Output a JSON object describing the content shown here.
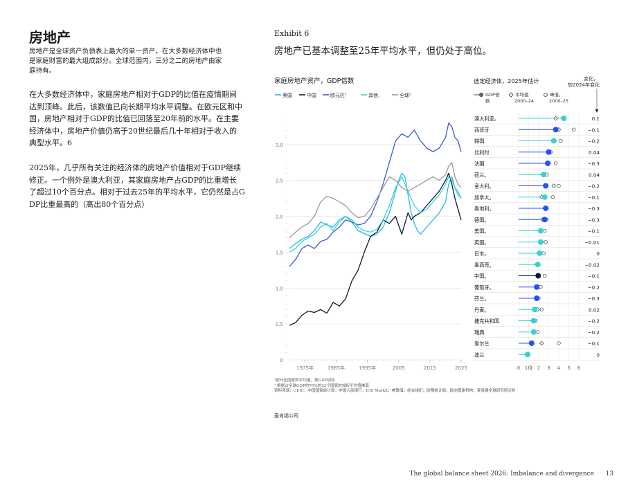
{
  "section": {
    "title": "房地产",
    "intro_lines": [
      "房地产是全球资产负债表上最大的单一资产，在大多数经济体中也",
      "是家庭财富的最大组成部分。全球范围内，三分之二的房地产由家",
      "庭持有。"
    ]
  },
  "body": {
    "para1_lines": [
      "在大多数经济体中，家庭房地产相对于GDP的比值在疫情期间",
      "达到顶峰。此后，该数值已向长期平均水平调整。在欧元区和中",
      "国，房地产相对于GDP的比值已回落至20年前的水平。在主要",
      "经济体中，房地产价值仍高于20世纪最后几十年相对于收入的",
      "典型水平。6"
    ],
    "para2_lines": [
      "2025年，几乎所有关注的经济体的房地产价值相对于GDP继续",
      "修正。一个例外是澳大利亚，其家庭房地产占GDP的比重增长",
      "了超过10个百分点。相对于过去25年的平均水平，它仍然是占G",
      "DP比重最高的（高出80个百分点）"
    ]
  },
  "exhibit": {
    "label": "Exhibit 6",
    "title": "房地产已基本调整至25年平均水平，但仍处于高位。"
  },
  "colors": {
    "us": "#2ab7e3",
    "china": "#0b1a33",
    "euro": "#3a57d6",
    "other": "#36d3d3",
    "global": "#9a9a9a",
    "dot_fill": "#2251ff",
    "dot_teal": "#36d3d3",
    "dot_dark": "#0b1a33"
  },
  "chart_data": [
    {
      "type": "line",
      "title": "家庭房地产资产，GDP倍数",
      "legend": [
        "美国",
        "中国",
        "欧元区¹",
        "其他.",
        "全球²"
      ],
      "x_ticks": [
        "1975年",
        "1985年",
        "1995年",
        "2005",
        "2015",
        "2025"
      ],
      "y_ticks": [
        "0",
        "0.5",
        "1.0",
        "1.5",
        "2.0",
        "2.5",
        "3.0"
      ],
      "ylim": [
        0,
        3.5
      ],
      "xlim": [
        1970,
        2025
      ],
      "series": [
        {
          "name": "美国",
          "color_key": "us",
          "x": [
            1970,
            1972,
            1974,
            1976,
            1978,
            1980,
            1982,
            1984,
            1986,
            1988,
            1990,
            1992,
            1994,
            1996,
            1998,
            2000,
            2002,
            2004,
            2005,
            2006,
            2007,
            2008,
            2009,
            2010,
            2011,
            2012,
            2014,
            2016,
            2018,
            2020,
            2021,
            2022,
            2023,
            2024,
            2025
          ],
          "y": [
            1.55,
            1.62,
            1.68,
            1.72,
            1.8,
            1.92,
            1.88,
            1.85,
            1.95,
            2.0,
            1.92,
            1.8,
            1.76,
            1.72,
            1.75,
            1.85,
            2.05,
            2.35,
            2.5,
            2.6,
            2.55,
            2.3,
            2.05,
            1.9,
            1.8,
            1.75,
            1.85,
            1.95,
            2.05,
            2.2,
            2.45,
            2.55,
            2.4,
            2.3,
            2.25
          ]
        },
        {
          "name": "中国",
          "color_key": "china",
          "x": [
            1970,
            1972,
            1974,
            1976,
            1978,
            1980,
            1982,
            1984,
            1986,
            1988,
            1990,
            1992,
            1994,
            1996,
            1998,
            2000,
            2002,
            2004,
            2006,
            2008,
            2009,
            2010,
            2012,
            2014,
            2016,
            2018,
            2020,
            2021,
            2022,
            2023,
            2024,
            2025
          ],
          "y": [
            0.48,
            0.52,
            0.62,
            0.68,
            0.66,
            0.7,
            0.65,
            0.8,
            0.75,
            0.85,
            1.1,
            1.25,
            1.5,
            1.72,
            1.78,
            1.95,
            1.9,
            2.0,
            1.75,
            2.05,
            1.95,
            2.0,
            2.05,
            2.15,
            2.25,
            2.35,
            2.5,
            2.6,
            2.45,
            2.25,
            2.1,
            1.95
          ]
        },
        {
          "name": "欧元区¹",
          "color_key": "euro",
          "x": [
            1970,
            1972,
            1974,
            1976,
            1978,
            1980,
            1982,
            1984,
            1986,
            1988,
            1990,
            1992,
            1994,
            1996,
            1998,
            2000,
            2002,
            2004,
            2006,
            2008,
            2010,
            2012,
            2014,
            2016,
            2018,
            2020,
            2021,
            2022,
            2023,
            2024,
            2025
          ],
          "y": [
            1.3,
            1.4,
            1.55,
            1.6,
            1.55,
            1.65,
            1.68,
            1.78,
            1.85,
            1.95,
            1.92,
            1.88,
            1.9,
            2.0,
            2.2,
            2.45,
            2.75,
            3.05,
            3.15,
            3.1,
            3.2,
            3.05,
            2.95,
            2.9,
            2.95,
            3.1,
            3.3,
            3.25,
            3.1,
            3.05,
            2.9
          ]
        },
        {
          "name": "其他.",
          "color_key": "other",
          "x": [
            1970,
            1972,
            1974,
            1976,
            1978,
            1980,
            1982,
            1984,
            1986,
            1988,
            1990,
            1992,
            1994,
            1996,
            1998,
            2000,
            2002,
            2004,
            2006,
            2008,
            2010,
            2012,
            2014,
            2016,
            2018,
            2020,
            2021,
            2022,
            2023,
            2024,
            2025
          ],
          "y": [
            1.5,
            1.55,
            1.65,
            1.7,
            1.75,
            1.85,
            1.9,
            1.8,
            1.92,
            2.0,
            1.95,
            1.85,
            1.8,
            1.78,
            1.82,
            1.95,
            2.15,
            2.4,
            2.55,
            2.35,
            2.15,
            2.05,
            2.1,
            2.2,
            2.3,
            2.45,
            2.55,
            2.5,
            2.4,
            2.35,
            2.25
          ]
        },
        {
          "name": "全球²",
          "color_key": "global",
          "x": [
            1970,
            1972,
            1974,
            1976,
            1978,
            1980,
            1982,
            1984,
            1986,
            1988,
            1990,
            1992,
            1994,
            1996,
            1998,
            2000,
            2002,
            2004,
            2006,
            2008,
            2010,
            2012,
            2014,
            2016,
            2018,
            2020,
            2021,
            2022,
            2023,
            2024,
            2025
          ],
          "y": [
            1.7,
            1.78,
            1.85,
            1.9,
            2.0,
            2.2,
            2.28,
            2.25,
            2.2,
            2.15,
            2.05,
            1.98,
            2.0,
            2.1,
            2.25,
            2.4,
            2.55,
            2.5,
            2.4,
            2.35,
            2.4,
            2.45,
            2.5,
            2.55,
            2.5,
            2.58,
            2.7,
            2.75,
            2.55,
            2.45,
            2.4
          ]
        }
      ]
    },
    {
      "type": "scatter",
      "title": "选定经济体，2025年估计",
      "change_header": "变化，",
      "change_header_sub": "较2024年变化",
      "legend": {
        "gdp": "GDP倍",
        "gdp_sub": "数",
        "avg": "平均值",
        "avg_sub": "2000–24",
        "peak": "峰值，",
        "peak_sub": "2000–25"
      },
      "x_ticks": [
        "0",
        "1倍",
        "2",
        "3",
        "4",
        "5",
        "6"
      ],
      "xlim": [
        0,
        6
      ],
      "rows": [
        {
          "name": "澳大利亚。",
          "gdp": 4.5,
          "avg": 3.7,
          "peak": 4.5,
          "change": "0.1",
          "style": "teal"
        },
        {
          "name": "西班牙",
          "gdp": 3.7,
          "avg": 4.0,
          "peak": 5.5,
          "change": "−0.1",
          "style": "blue"
        },
        {
          "name": "韩国",
          "gdp": 3.5,
          "avg": 3.6,
          "peak": 4.2,
          "change": "−0.2",
          "style": "teal"
        },
        {
          "name": "比利时",
          "gdp": 3.0,
          "avg": 3.1,
          "peak": 3.2,
          "change": "0.04",
          "style": "blue"
        },
        {
          "name": "法国",
          "gdp": 2.9,
          "avg": 3.0,
          "peak": 3.7,
          "change": "−0.3",
          "style": "blue"
        },
        {
          "name": "荷兰。",
          "gdp": 2.5,
          "avg": 2.4,
          "peak": 2.8,
          "change": "0.04",
          "style": "teal"
        },
        {
          "name": "意大利。",
          "gdp": 2.7,
          "avg": 3.5,
          "peak": 4.0,
          "change": "−0.2",
          "style": "blue"
        },
        {
          "name": "加拿大。",
          "gdp": 2.6,
          "avg": 2.3,
          "peak": 3.4,
          "change": "−0.1",
          "style": "teal"
        },
        {
          "name": "奥地利。",
          "gdp": 2.7,
          "avg": 2.6,
          "peak": 2.8,
          "change": "−0.3",
          "style": "blue"
        },
        {
          "name": "德国。",
          "gdp": 2.6,
          "avg": 2.4,
          "peak": 2.8,
          "change": "−0.3",
          "style": "blue"
        },
        {
          "name": "美国。",
          "gdp": 2.2,
          "avg": 2.1,
          "peak": 2.6,
          "change": "−0.1",
          "style": "teal"
        },
        {
          "name": "英国。",
          "gdp": 2.2,
          "avg": 2.3,
          "peak": 2.7,
          "change": "−0.01",
          "style": "teal"
        },
        {
          "name": "日本。",
          "gdp": 2.1,
          "avg": 2.0,
          "peak": 2.5,
          "change": "0",
          "style": "teal"
        },
        {
          "name": "墨西哥。",
          "gdp": 1.9,
          "avg": 1.8,
          "peak": 2.0,
          "change": "−0.02",
          "style": "teal"
        },
        {
          "name": "中国。",
          "gdp": 1.95,
          "avg": 2.0,
          "peak": 2.6,
          "change": "−0.1",
          "style": "dark"
        },
        {
          "name": "葡萄牙。",
          "gdp": 1.8,
          "avg": 2.0,
          "peak": 2.2,
          "change": "−0.2",
          "style": "blue"
        },
        {
          "name": "芬兰。",
          "gdp": 1.8,
          "avg": 1.9,
          "peak": 2.0,
          "change": "−0.3",
          "style": "blue"
        },
        {
          "name": "丹麦。",
          "gdp": 1.6,
          "avg": 1.9,
          "peak": 2.3,
          "change": "0.02",
          "style": "teal"
        },
        {
          "name": "捷克共和国",
          "gdp": 1.5,
          "avg": 1.4,
          "peak": 1.7,
          "change": "−0.2",
          "style": "teal"
        },
        {
          "name": "瑞典",
          "gdp": 1.5,
          "avg": 1.6,
          "peak": 1.9,
          "change": "−0.2",
          "style": "teal"
        },
        {
          "name": "爱尔兰",
          "gdp": 1.3,
          "avg": 2.3,
          "peak": 4.0,
          "change": "−0.1",
          "style": "blue"
        },
        {
          "name": "波兰",
          "gdp": 0.9,
          "avg": 0.8,
          "peak": 1.0,
          "change": "0",
          "style": "teal"
        }
      ]
    }
  ],
  "notes": {
    "note1": "¹欧元区国家的平均值，按GDP加权",
    "note2": "² 根据占全球GDP约70%的23个国家的加权平均值推算",
    "source": "资料来源：CEIC；中国国家统计局；中国人民银行；IHS Markit；美联储；经合组织；欧盟统计局；欧洲国家机构；麦肯锡全球研究院分析"
  },
  "publisher": "麦肯锡公司",
  "footer": {
    "title": "The global balance sheet 2026: Imbalance and divergence",
    "page": "13"
  }
}
